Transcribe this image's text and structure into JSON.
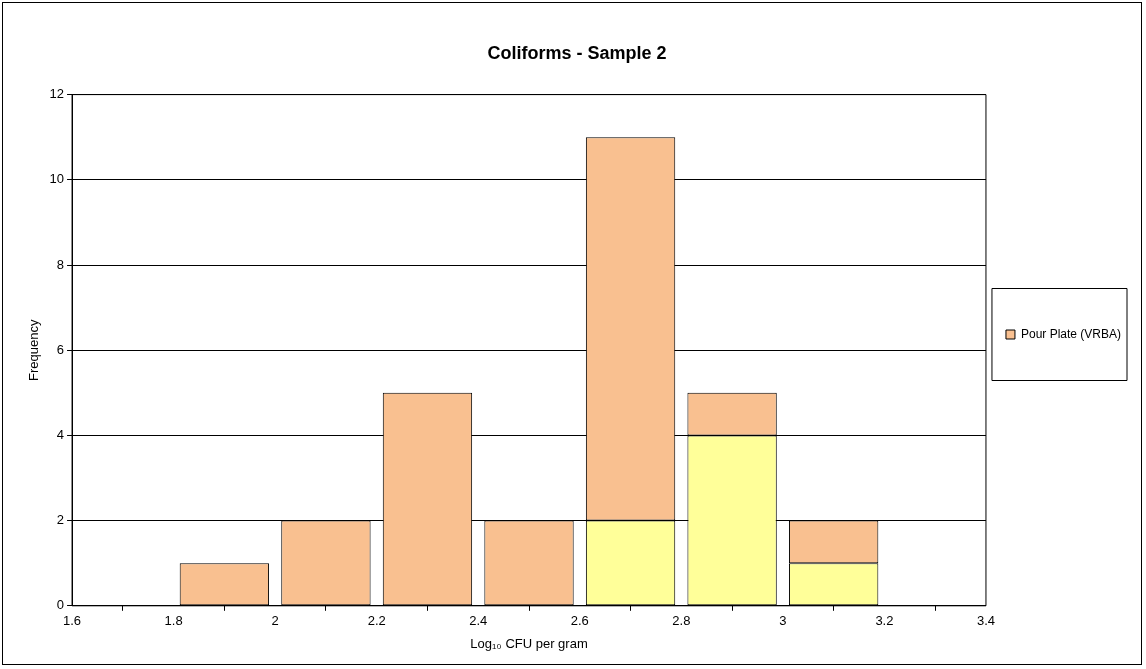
{
  "chart_data": {
    "type": "bar",
    "title": "Coliforms - Sample 2",
    "xlabel": "Log₁₀ CFU per gram",
    "ylabel": "Frequency",
    "x": [
      1.9,
      2.1,
      2.3,
      2.5,
      2.7,
      2.9,
      3.1
    ],
    "series": [
      {
        "color": "#ffff99",
        "values": [
          0,
          0,
          0,
          0,
          2,
          4,
          1
        ]
      },
      {
        "name": "Pour Plate (VRBA)",
        "color": "#f9c090",
        "values": [
          1,
          2,
          5,
          2,
          9,
          1,
          1
        ]
      }
    ],
    "stacked": true,
    "xlim": [
      1.6,
      3.4
    ],
    "xticks": [
      1.6,
      1.8,
      2,
      2.2,
      2.4,
      2.6,
      2.8,
      3,
      3.2,
      3.4
    ],
    "ylim": [
      0,
      12
    ],
    "yticks": [
      0,
      2,
      4,
      6,
      8,
      10,
      12
    ],
    "grid": "y",
    "legend": "right"
  }
}
